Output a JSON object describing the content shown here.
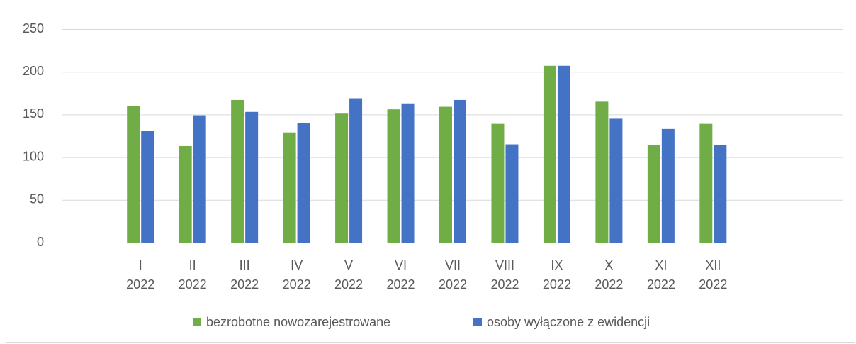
{
  "chart_data": {
    "type": "bar",
    "categories": [
      null,
      [
        "I",
        "2022"
      ],
      [
        "II",
        "2022"
      ],
      [
        "III",
        "2022"
      ],
      [
        "IV",
        "2022"
      ],
      [
        "V",
        "2022"
      ],
      [
        "VI",
        "2022"
      ],
      [
        "VII",
        "2022"
      ],
      [
        "VIII",
        "2022"
      ],
      [
        "IX",
        "2022"
      ],
      [
        "X",
        "2022"
      ],
      [
        "XI",
        "2022"
      ],
      [
        "XII",
        "2022"
      ],
      null,
      null
    ],
    "series": [
      {
        "name": "bezrobotne nowozarejestrowane",
        "color": "#70ad47",
        "values": [
          null,
          160,
          113,
          167,
          129,
          151,
          156,
          159,
          139,
          207,
          165,
          114,
          139,
          null,
          null
        ]
      },
      {
        "name": "osoby wyłączone z ewidencji",
        "color": "#4472c4",
        "values": [
          null,
          131,
          149,
          153,
          140,
          169,
          163,
          167,
          115,
          207,
          145,
          133,
          114,
          null,
          null
        ]
      }
    ],
    "ylim": [
      0,
      250
    ],
    "yticks": [
      0,
      50,
      100,
      150,
      200,
      250
    ],
    "grid": true,
    "legend": "bottom"
  }
}
